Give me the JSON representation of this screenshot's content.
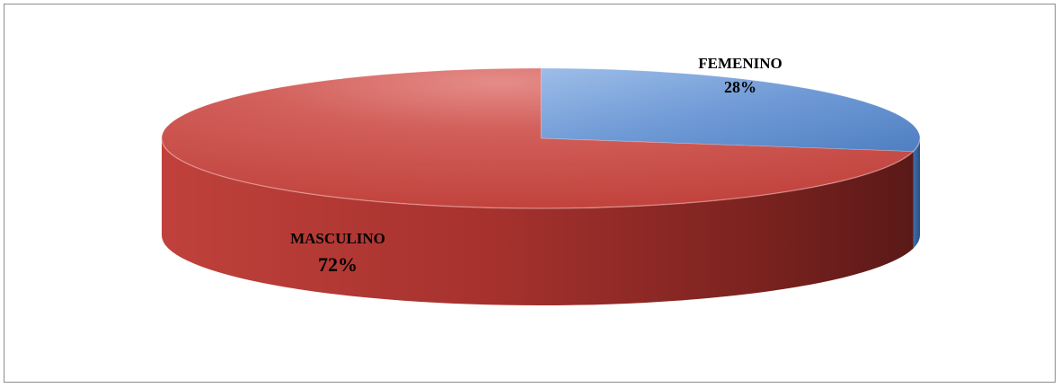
{
  "chart_data": {
    "type": "pie",
    "style": "3d",
    "title": "",
    "legend": "none",
    "slices": [
      {
        "label": "FEMENINO",
        "percent_label": "28%",
        "value": 28,
        "color": "#4f81bd"
      },
      {
        "label": "MASCULINO",
        "percent_label": "72%",
        "value": 72,
        "color": "#c0504d"
      }
    ]
  }
}
